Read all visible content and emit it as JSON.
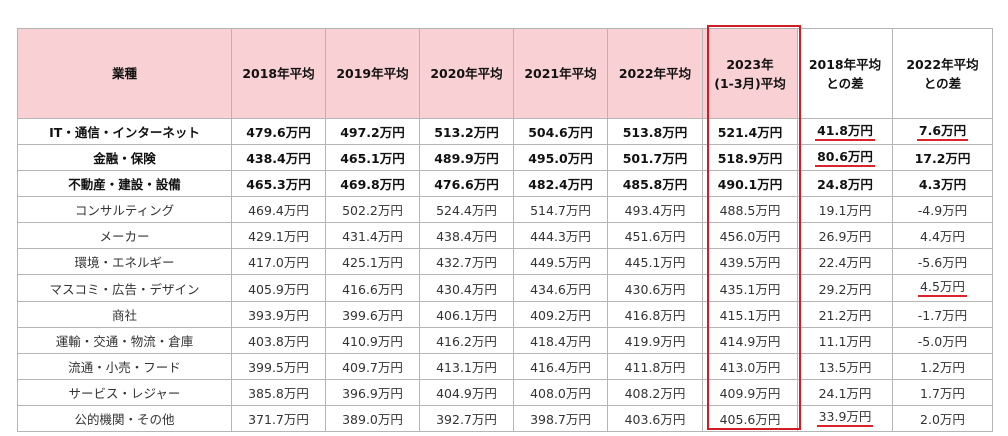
{
  "table": {
    "headers": [
      [
        "業種"
      ],
      [
        "2018年平均"
      ],
      [
        "2019年平均"
      ],
      [
        "2020年平均"
      ],
      [
        "2021年平均"
      ],
      [
        "2022年平均"
      ],
      [
        "2023年",
        "(1-3月)平均"
      ],
      [
        "2018年平均",
        "との差"
      ],
      [
        "2022年平均",
        "との差"
      ]
    ],
    "rows": [
      {
        "industry": "IT・通信・インターネット",
        "bold": true,
        "values": [
          "479.6万円",
          "497.2万円",
          "513.2万円",
          "504.6万円",
          "513.8万円",
          "521.4万円",
          "41.8万円",
          "7.6万円"
        ],
        "underline": [
          6,
          7
        ]
      },
      {
        "industry": "金融・保険",
        "bold": true,
        "values": [
          "438.4万円",
          "465.1万円",
          "489.9万円",
          "495.0万円",
          "501.7万円",
          "518.9万円",
          "80.6万円",
          "17.2万円"
        ],
        "underline": [
          6
        ]
      },
      {
        "industry": "不動産・建設・設備",
        "bold": true,
        "values": [
          "465.3万円",
          "469.8万円",
          "476.6万円",
          "482.4万円",
          "485.8万円",
          "490.1万円",
          "24.8万円",
          "4.3万円"
        ],
        "underline": []
      },
      {
        "industry": "コンサルティング",
        "bold": false,
        "values": [
          "469.4万円",
          "502.2万円",
          "524.4万円",
          "514.7万円",
          "493.4万円",
          "488.5万円",
          "19.1万円",
          "-4.9万円"
        ],
        "underline": []
      },
      {
        "industry": "メーカー",
        "bold": false,
        "values": [
          "429.1万円",
          "431.4万円",
          "438.4万円",
          "444.3万円",
          "451.6万円",
          "456.0万円",
          "26.9万円",
          "4.4万円"
        ],
        "underline": []
      },
      {
        "industry": "環境・エネルギー",
        "bold": false,
        "values": [
          "417.0万円",
          "425.1万円",
          "432.7万円",
          "449.5万円",
          "445.1万円",
          "439.5万円",
          "22.4万円",
          "-5.6万円"
        ],
        "underline": []
      },
      {
        "industry": "マスコミ・広告・デザイン",
        "bold": false,
        "values": [
          "405.9万円",
          "416.6万円",
          "430.4万円",
          "434.6万円",
          "430.6万円",
          "435.1万円",
          "29.2万円",
          "4.5万円"
        ],
        "underline": [
          7
        ]
      },
      {
        "industry": "商社",
        "bold": false,
        "values": [
          "393.9万円",
          "399.6万円",
          "406.1万円",
          "409.2万円",
          "416.8万円",
          "415.1万円",
          "21.2万円",
          "-1.7万円"
        ],
        "underline": []
      },
      {
        "industry": "運輸・交通・物流・倉庫",
        "bold": false,
        "values": [
          "403.8万円",
          "410.9万円",
          "416.2万円",
          "418.4万円",
          "419.9万円",
          "414.9万円",
          "11.1万円",
          "-5.0万円"
        ],
        "underline": []
      },
      {
        "industry": "流通・小売・フード",
        "bold": false,
        "values": [
          "399.5万円",
          "409.7万円",
          "413.1万円",
          "416.4万円",
          "411.8万円",
          "413.0万円",
          "13.5万円",
          "1.2万円"
        ],
        "underline": []
      },
      {
        "industry": "サービス・レジャー",
        "bold": false,
        "values": [
          "385.8万円",
          "396.9万円",
          "404.9万円",
          "408.0万円",
          "408.2万円",
          "409.9万円",
          "24.1万円",
          "1.7万円"
        ],
        "underline": []
      },
      {
        "industry": "公的機関・その他",
        "bold": false,
        "values": [
          "371.7万円",
          "389.0万円",
          "392.7万円",
          "398.7万円",
          "403.6万円",
          "405.6万円",
          "33.9万円",
          "2.0万円"
        ],
        "underline": [
          6
        ]
      }
    ]
  },
  "colors": {
    "header_bg": "#f9d0d3",
    "highlight_border": "#d01c24",
    "underline": "#d9242b",
    "grid": "#b5b5b5"
  }
}
